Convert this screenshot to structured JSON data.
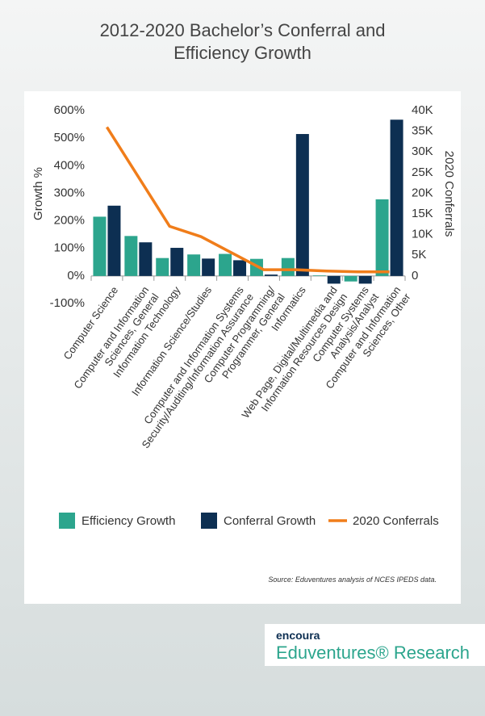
{
  "chart_data": {
    "type": "bar_line",
    "title": "2012-2020 Bachelor’s Conferral and\nEfficiency Growth",
    "ylabel": "Growth %",
    "y2label": "2020 Conferrals",
    "categories": [
      "Computer Science",
      "Computer and Information\nSciences, General",
      "Information Technology",
      "Information Science/Studies",
      "Computer and Information Systems\nSecurity/Auditing/Information Assurance",
      "Computer Programming/\nProgrammer, General",
      "Informatics",
      "Web Page, Digital/Multimedia and\nInformation Resources Design",
      "Computer Systems\nAnalysis/Analyst",
      "Computer and Information\nSciences, Other"
    ],
    "series": [
      {
        "name": "Efficiency Growth",
        "type": "bar",
        "color": "#2ca58d",
        "values": [
          215,
          145,
          65,
          78,
          80,
          62,
          65,
          2,
          -20,
          278
        ]
      },
      {
        "name": "Conferral Growth",
        "type": "bar",
        "color": "#0d2f52",
        "values": [
          255,
          122,
          102,
          63,
          57,
          5,
          515,
          -28,
          -28,
          567
        ]
      },
      {
        "name": "2020 Conferrals",
        "type": "line",
        "axis": "y2",
        "color": "#f07d1a",
        "values": [
          36000,
          24000,
          12000,
          9500,
          5500,
          1500,
          1500,
          1200,
          1000,
          1000
        ]
      }
    ],
    "ylim": [
      -100,
      600
    ],
    "yticks": [
      {
        "value": -100,
        "label": "-100%"
      },
      {
        "value": 0,
        "label": "0%"
      },
      {
        "value": 100,
        "label": "100%"
      },
      {
        "value": 200,
        "label": "200%"
      },
      {
        "value": 300,
        "label": "300%"
      },
      {
        "value": 400,
        "label": "400%"
      },
      {
        "value": 500,
        "label": "500%"
      },
      {
        "value": 600,
        "label": "600%"
      }
    ],
    "y2lim": [
      0,
      40000
    ],
    "y2ticks": [
      0,
      {
        "value": 5000,
        "label": "5K"
      },
      {
        "value": 10000,
        "label": "10K"
      },
      {
        "value": 15000,
        "label": "15K"
      },
      {
        "value": 20000,
        "label": "20K"
      },
      {
        "value": 25000,
        "label": "25K"
      },
      {
        "value": 30000,
        "label": "30K"
      },
      {
        "value": 35000,
        "label": "35K"
      },
      {
        "value": 40000,
        "label": "40K"
      }
    ],
    "grid": false,
    "source": "Source: Eduventures analysis of NCES IPEDS data."
  },
  "logo": {
    "brand": "encoura",
    "name": "Eduventures® Research"
  }
}
